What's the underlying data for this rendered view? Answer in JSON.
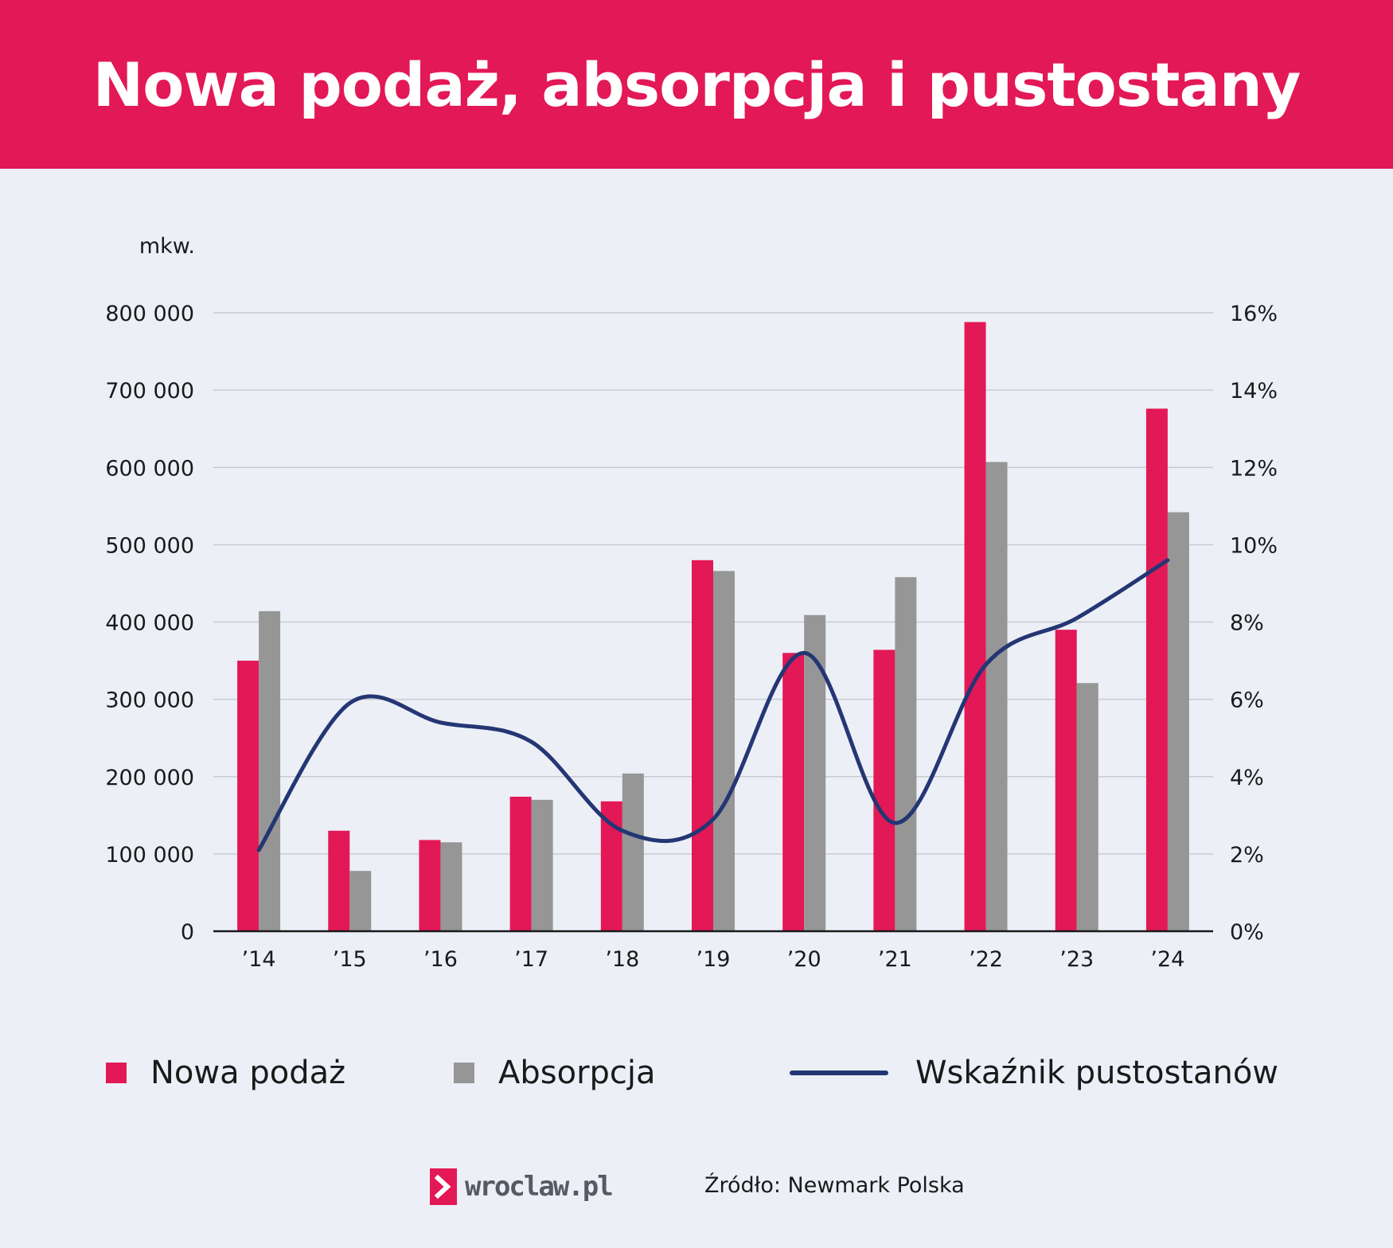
{
  "header": {
    "title": "Nowa podaż, absorpcja i pustostany"
  },
  "colors": {
    "header_bg": "#e31856",
    "nowa_podaz": "#e31856",
    "absorpcja": "#969696",
    "wskaznik": "#243673",
    "background": "#eceff6"
  },
  "legend": {
    "nowa_podaz": "Nowa podaż",
    "absorpcja": "Absorpcja",
    "wskaznik": "Wskaźnik pustostanów"
  },
  "footer": {
    "logo_text": "wroclaw.pl",
    "source": "Źródło: Newmark Polska"
  },
  "chart_data": {
    "type": "bar",
    "ylabel": "mkw.",
    "ylim": [
      0,
      800000
    ],
    "y_ticks": [
      "0",
      "100 000",
      "200 000",
      "300 000",
      "400 000",
      "500 000",
      "600 000",
      "700 000",
      "800 000"
    ],
    "y2lim": [
      0,
      16
    ],
    "y2_ticks": [
      "0%",
      "2%",
      "4%",
      "6%",
      "8%",
      "10%",
      "12%",
      "14%",
      "16%"
    ],
    "grid": true,
    "legend_position": "bottom",
    "categories": [
      "’14",
      "’15",
      "’16",
      "’17",
      "’18",
      "’19",
      "’20",
      "’21",
      "’22",
      "’23",
      "’24"
    ],
    "series": [
      {
        "name": "Nowa podaż",
        "type": "bar",
        "axis": "left",
        "values": [
          350000,
          130000,
          118000,
          174000,
          168000,
          480000,
          360000,
          364000,
          788000,
          390000,
          676000
        ]
      },
      {
        "name": "Absorpcja",
        "type": "bar",
        "axis": "left",
        "values": [
          414000,
          78000,
          115000,
          170000,
          204000,
          466000,
          409000,
          458000,
          607000,
          321000,
          542000
        ]
      },
      {
        "name": "Wskaźnik pustostanów",
        "type": "line",
        "axis": "right",
        "smooth": true,
        "values": [
          2.1,
          5.9,
          5.4,
          4.9,
          2.6,
          2.9,
          7.2,
          2.8,
          6.9,
          8.1,
          9.6
        ]
      }
    ]
  }
}
